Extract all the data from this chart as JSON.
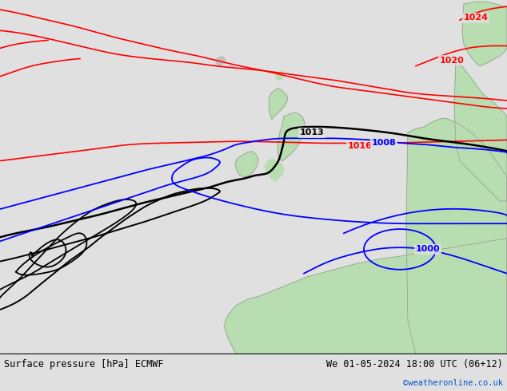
{
  "title_left": "Surface pressure [hPa] ECMWF",
  "title_right": "We 01-05-2024 18:00 UTC (06+12)",
  "copyright": "©weatheronline.co.uk",
  "bg_color": "#e0e0e0",
  "land_color": "#b8ddb0",
  "coast_color": "#888888",
  "figsize": [
    6.34,
    4.9
  ],
  "dpi": 100,
  "bottom_bar_color": "#ffffff"
}
